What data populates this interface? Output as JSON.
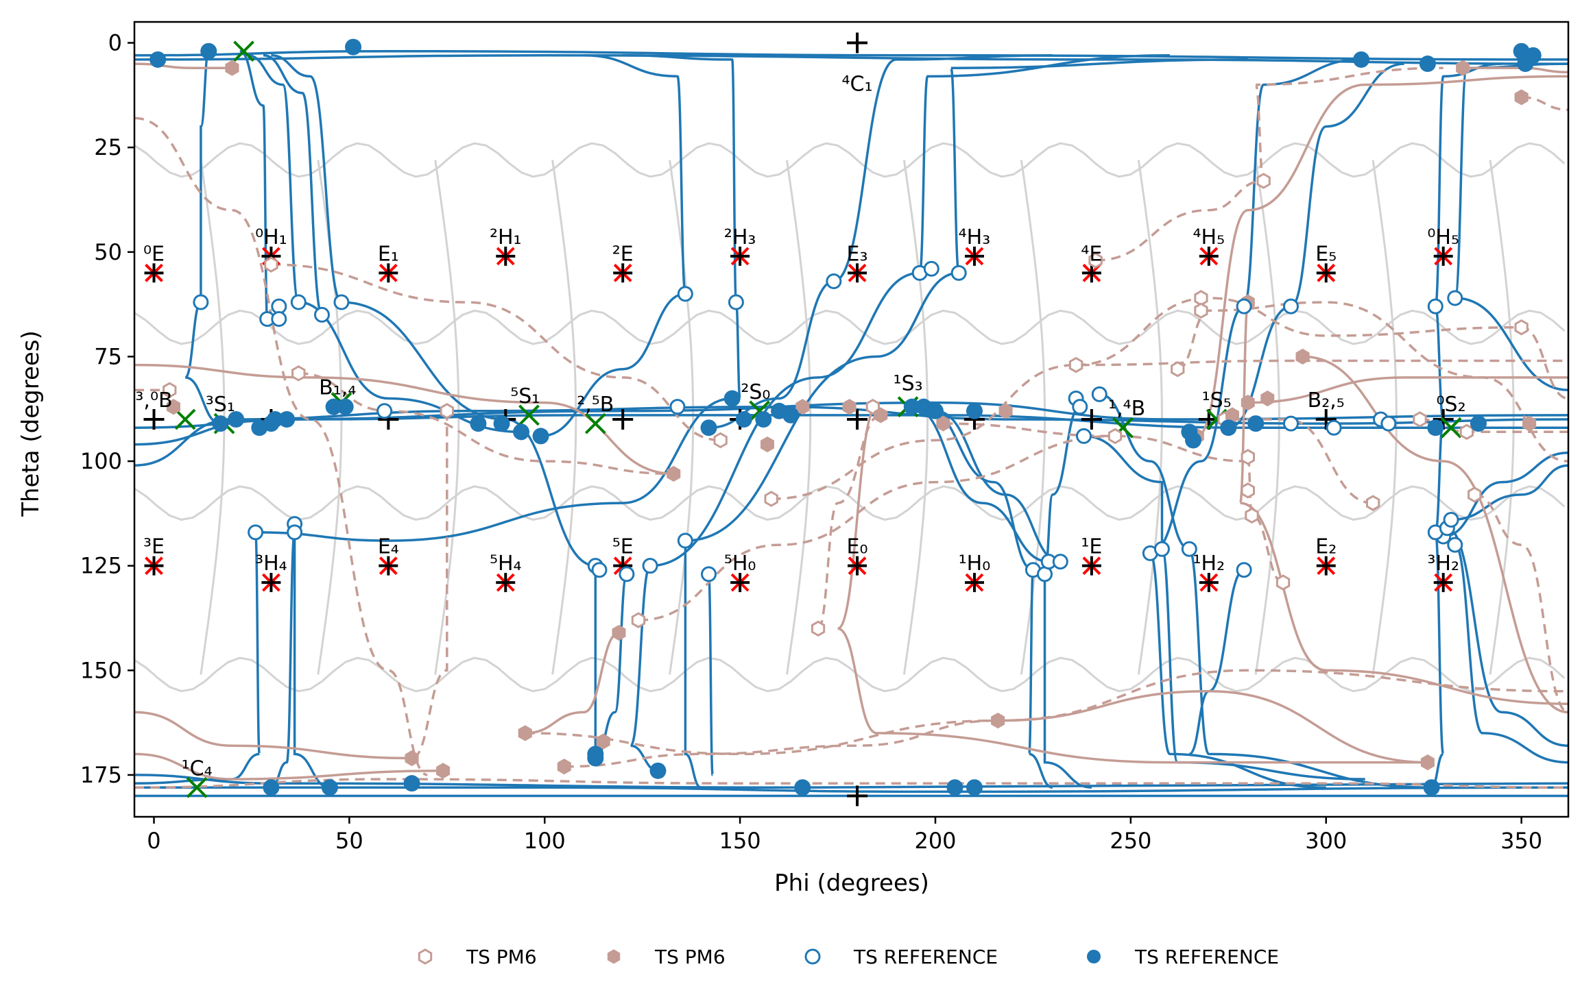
{
  "chart_data": {
    "type": "scatter",
    "xlabel": "Phi (degrees)",
    "ylabel": "Theta (degrees)",
    "xlim": [
      -5,
      362
    ],
    "ylim": [
      185,
      -5
    ],
    "y_axis_inverted": true,
    "x_ticks": [
      "0",
      "50",
      "100",
      "150",
      "200",
      "250",
      "300",
      "350"
    ],
    "y_ticks": [
      "0",
      "25",
      "50",
      "75",
      "100",
      "125",
      "150",
      "175"
    ],
    "grid": false,
    "legend_position": "bottom-center",
    "colors": {
      "pm6": "#c49c94",
      "reference": "#1f77b4",
      "background_mesh": "#d3d3d3",
      "canonical_marker": "#ff0000",
      "local_min_marker": "#008000"
    },
    "legend": [
      {
        "label": "TS PM6",
        "marker": "open-hexagon",
        "color": "#c49c94"
      },
      {
        "label": "TS PM6",
        "marker": "filled-hexagon",
        "color": "#c49c94"
      },
      {
        "label": "TS REFERENCE",
        "marker": "open-circle",
        "color": "#1f77b4"
      },
      {
        "label": "TS REFERENCE",
        "marker": "filled-circle",
        "color": "#1f77b4"
      }
    ],
    "conformations": [
      {
        "label": "⁴C₁",
        "phi": 180,
        "theta": 0,
        "pos": "below"
      },
      {
        "label": "⁰E",
        "phi": 0,
        "theta": 55
      },
      {
        "label": "⁰H₁",
        "phi": 30,
        "theta": 51
      },
      {
        "label": "E₁",
        "phi": 60,
        "theta": 55
      },
      {
        "label": "²H₁",
        "phi": 90,
        "theta": 51
      },
      {
        "label": "²E",
        "phi": 120,
        "theta": 55
      },
      {
        "label": "²H₃",
        "phi": 150,
        "theta": 51
      },
      {
        "label": "E₃",
        "phi": 180,
        "theta": 55
      },
      {
        "label": "⁴H₃",
        "phi": 210,
        "theta": 51
      },
      {
        "label": "⁴E",
        "phi": 240,
        "theta": 55
      },
      {
        "label": "⁴H₅",
        "phi": 270,
        "theta": 51
      },
      {
        "label": "E₅",
        "phi": 300,
        "theta": 55
      },
      {
        "label": "⁰H₅",
        "phi": 330,
        "theta": 51
      },
      {
        "label": "³,⁰B",
        "phi": 0,
        "theta": 90
      },
      {
        "label": "³S₁",
        "phi": 17,
        "theta": 91
      },
      {
        "label": "B₁,₄",
        "phi": 47,
        "theta": 87
      },
      {
        "label": "⁵S₁",
        "phi": 95,
        "theta": 89
      },
      {
        "label": "²,⁵B",
        "phi": 113,
        "theta": 91
      },
      {
        "label": "²S₀",
        "phi": 154,
        "theta": 88
      },
      {
        "label": "¹S₃",
        "phi": 193,
        "theta": 86
      },
      {
        "label": "¹,⁴B",
        "phi": 249,
        "theta": 92
      },
      {
        "label": "¹S₅",
        "phi": 272,
        "theta": 90
      },
      {
        "label": "B₂,₅",
        "phi": 300,
        "theta": 90
      },
      {
        "label": "⁰S₂",
        "phi": 332,
        "theta": 91
      },
      {
        "label": "³E",
        "phi": 0,
        "theta": 125
      },
      {
        "label": "³H₄",
        "phi": 30,
        "theta": 129
      },
      {
        "label": "E₄",
        "phi": 60,
        "theta": 125
      },
      {
        "label": "⁵H₄",
        "phi": 90,
        "theta": 129
      },
      {
        "label": "⁵E",
        "phi": 120,
        "theta": 125
      },
      {
        "label": "⁵H₀",
        "phi": 150,
        "theta": 129
      },
      {
        "label": "E₀",
        "phi": 180,
        "theta": 125
      },
      {
        "label": "¹H₀",
        "phi": 210,
        "theta": 129
      },
      {
        "label": "¹E",
        "phi": 240,
        "theta": 125
      },
      {
        "label": "¹H₂",
        "phi": 270,
        "theta": 129
      },
      {
        "label": "E₂",
        "phi": 300,
        "theta": 125
      },
      {
        "label": "³H₂",
        "phi": 330,
        "theta": 129
      },
      {
        "label": "¹C₄",
        "phi": 11,
        "theta": 178
      }
    ],
    "center_points": [
      {
        "phi": 180,
        "theta": 0
      },
      {
        "phi": 180,
        "theta": 180
      },
      {
        "phi": 0,
        "theta": 90
      },
      {
        "phi": 30,
        "theta": 90
      },
      {
        "phi": 60,
        "theta": 90
      },
      {
        "phi": 90,
        "theta": 90
      },
      {
        "phi": 120,
        "theta": 90
      },
      {
        "phi": 150,
        "theta": 90
      },
      {
        "phi": 180,
        "theta": 90
      },
      {
        "phi": 210,
        "theta": 90
      },
      {
        "phi": 240,
        "theta": 90
      },
      {
        "phi": 270,
        "theta": 90
      },
      {
        "phi": 300,
        "theta": 90
      },
      {
        "phi": 330,
        "theta": 90
      }
    ],
    "local_minima": [
      {
        "phi": 23,
        "theta": 2
      },
      {
        "phi": 11,
        "theta": 178
      },
      {
        "phi": 8,
        "theta": 90
      },
      {
        "phi": 18,
        "theta": 91
      },
      {
        "phi": 48,
        "theta": 86
      },
      {
        "phi": 96,
        "theta": 89
      },
      {
        "phi": 113,
        "theta": 91
      },
      {
        "phi": 155,
        "theta": 88
      },
      {
        "phi": 193,
        "theta": 87
      },
      {
        "phi": 248,
        "theta": 92
      },
      {
        "phi": 272,
        "theta": 90
      },
      {
        "phi": 332,
        "theta": 92
      }
    ],
    "series": [
      {
        "name": "TS PM6",
        "marker": "open-hexagon",
        "points": [
          {
            "phi": 30,
            "theta": 53
          },
          {
            "phi": 37,
            "theta": 79
          },
          {
            "phi": 75,
            "theta": 88
          },
          {
            "phi": 4,
            "theta": 83
          },
          {
            "phi": 145,
            "theta": 95
          },
          {
            "phi": 158,
            "theta": 109
          },
          {
            "phi": 170,
            "theta": 140
          },
          {
            "phi": 124,
            "theta": 138
          },
          {
            "phi": 236,
            "theta": 77
          },
          {
            "phi": 262,
            "theta": 78
          },
          {
            "phi": 268,
            "theta": 61
          },
          {
            "phi": 268,
            "theta": 64
          },
          {
            "phi": 284,
            "theta": 33
          },
          {
            "phi": 246,
            "theta": 94
          },
          {
            "phi": 274,
            "theta": 90
          },
          {
            "phi": 280,
            "theta": 99
          },
          {
            "phi": 281,
            "theta": 113
          },
          {
            "phi": 280,
            "theta": 107
          },
          {
            "phi": 289,
            "theta": 129
          },
          {
            "phi": 312,
            "theta": 110
          },
          {
            "phi": 338,
            "theta": 108
          },
          {
            "phi": 350,
            "theta": 68
          },
          {
            "phi": 336,
            "theta": 93
          },
          {
            "phi": 324,
            "theta": 90
          },
          {
            "phi": 241,
            "theta": 52
          },
          {
            "phi": 184,
            "theta": 87
          }
        ]
      },
      {
        "name": "TS PM6",
        "marker": "filled-hexagon",
        "points": [
          {
            "phi": 20,
            "theta": 6
          },
          {
            "phi": 350,
            "theta": 13
          },
          {
            "phi": 335,
            "theta": 6
          },
          {
            "phi": 5,
            "theta": 87
          },
          {
            "phi": 133,
            "theta": 103
          },
          {
            "phi": 157,
            "theta": 96
          },
          {
            "phi": 166,
            "theta": 87
          },
          {
            "phi": 178,
            "theta": 87
          },
          {
            "phi": 186,
            "theta": 89
          },
          {
            "phi": 202,
            "theta": 91
          },
          {
            "phi": 218,
            "theta": 88
          },
          {
            "phi": 119,
            "theta": 141
          },
          {
            "phi": 95,
            "theta": 165
          },
          {
            "phi": 66,
            "theta": 171
          },
          {
            "phi": 74,
            "theta": 174
          },
          {
            "phi": 105,
            "theta": 173
          },
          {
            "phi": 216,
            "theta": 162
          },
          {
            "phi": 280,
            "theta": 62
          },
          {
            "phi": 285,
            "theta": 85
          },
          {
            "phi": 280,
            "theta": 86
          },
          {
            "phi": 267,
            "theta": 94
          },
          {
            "phi": 276,
            "theta": 89
          },
          {
            "phi": 294,
            "theta": 75
          },
          {
            "phi": 326,
            "theta": 172
          },
          {
            "phi": 352,
            "theta": 91
          },
          {
            "phi": 115,
            "theta": 167
          }
        ]
      },
      {
        "name": "TS REFERENCE",
        "marker": "open-circle",
        "points": [
          {
            "phi": 12,
            "theta": 62
          },
          {
            "phi": 29,
            "theta": 66
          },
          {
            "phi": 32,
            "theta": 63
          },
          {
            "phi": 32,
            "theta": 66
          },
          {
            "phi": 37,
            "theta": 62
          },
          {
            "phi": 43,
            "theta": 65
          },
          {
            "phi": 48,
            "theta": 62
          },
          {
            "phi": 59,
            "theta": 88
          },
          {
            "phi": 26,
            "theta": 117
          },
          {
            "phi": 36,
            "theta": 115
          },
          {
            "phi": 36,
            "theta": 117
          },
          {
            "phi": 113,
            "theta": 125
          },
          {
            "phi": 114,
            "theta": 126
          },
          {
            "phi": 121,
            "theta": 127
          },
          {
            "phi": 127,
            "theta": 125
          },
          {
            "phi": 136,
            "theta": 60
          },
          {
            "phi": 134,
            "theta": 87
          },
          {
            "phi": 136,
            "theta": 119
          },
          {
            "phi": 142,
            "theta": 127
          },
          {
            "phi": 149,
            "theta": 62
          },
          {
            "phi": 174,
            "theta": 57
          },
          {
            "phi": 196,
            "theta": 55
          },
          {
            "phi": 199,
            "theta": 54
          },
          {
            "phi": 206,
            "theta": 55
          },
          {
            "phi": 236,
            "theta": 85
          },
          {
            "phi": 237,
            "theta": 87
          },
          {
            "phi": 238,
            "theta": 94
          },
          {
            "phi": 242,
            "theta": 84
          },
          {
            "phi": 225,
            "theta": 126
          },
          {
            "phi": 228,
            "theta": 127
          },
          {
            "phi": 229,
            "theta": 124
          },
          {
            "phi": 232,
            "theta": 124
          },
          {
            "phi": 255,
            "theta": 122
          },
          {
            "phi": 258,
            "theta": 121
          },
          {
            "phi": 265,
            "theta": 121
          },
          {
            "phi": 279,
            "theta": 63
          },
          {
            "phi": 291,
            "theta": 63
          },
          {
            "phi": 291,
            "theta": 91
          },
          {
            "phi": 302,
            "theta": 92
          },
          {
            "phi": 314,
            "theta": 90
          },
          {
            "phi": 316,
            "theta": 91
          },
          {
            "phi": 279,
            "theta": 126
          },
          {
            "phi": 328,
            "theta": 63
          },
          {
            "phi": 330,
            "theta": 118
          },
          {
            "phi": 333,
            "theta": 61
          },
          {
            "phi": 328,
            "theta": 117
          },
          {
            "phi": 331,
            "theta": 116
          },
          {
            "phi": 332,
            "theta": 114
          },
          {
            "phi": 333,
            "theta": 120
          }
        ]
      },
      {
        "name": "TS REFERENCE",
        "marker": "filled-circle",
        "points": [
          {
            "phi": 1,
            "theta": 4
          },
          {
            "phi": 14,
            "theta": 2
          },
          {
            "phi": 51,
            "theta": 1
          },
          {
            "phi": 309,
            "theta": 4
          },
          {
            "phi": 326,
            "theta": 5
          },
          {
            "phi": 350,
            "theta": 2
          },
          {
            "phi": 351,
            "theta": 5
          },
          {
            "phi": 353,
            "theta": 3
          },
          {
            "phi": 17,
            "theta": 91
          },
          {
            "phi": 21,
            "theta": 90
          },
          {
            "phi": 27,
            "theta": 92
          },
          {
            "phi": 30,
            "theta": 91
          },
          {
            "phi": 31,
            "theta": 90
          },
          {
            "phi": 34,
            "theta": 90
          },
          {
            "phi": 46,
            "theta": 87
          },
          {
            "phi": 49,
            "theta": 87
          },
          {
            "phi": 83,
            "theta": 91
          },
          {
            "phi": 89,
            "theta": 91
          },
          {
            "phi": 94,
            "theta": 93
          },
          {
            "phi": 99,
            "theta": 94
          },
          {
            "phi": 142,
            "theta": 92
          },
          {
            "phi": 148,
            "theta": 85
          },
          {
            "phi": 151,
            "theta": 90
          },
          {
            "phi": 156,
            "theta": 90
          },
          {
            "phi": 160,
            "theta": 88
          },
          {
            "phi": 163,
            "theta": 89
          },
          {
            "phi": 194,
            "theta": 87
          },
          {
            "phi": 197,
            "theta": 87
          },
          {
            "phi": 200,
            "theta": 88
          },
          {
            "phi": 210,
            "theta": 88
          },
          {
            "phi": 265,
            "theta": 93
          },
          {
            "phi": 266,
            "theta": 95
          },
          {
            "phi": 275,
            "theta": 92
          },
          {
            "phi": 282,
            "theta": 91
          },
          {
            "phi": 328,
            "theta": 92
          },
          {
            "phi": 339,
            "theta": 91
          },
          {
            "phi": 113,
            "theta": 170
          },
          {
            "phi": 113,
            "theta": 171
          },
          {
            "phi": 129,
            "theta": 174
          },
          {
            "phi": 30,
            "theta": 178
          },
          {
            "phi": 45,
            "theta": 178
          },
          {
            "phi": 66,
            "theta": 177
          },
          {
            "phi": 166,
            "theta": 178
          },
          {
            "phi": 205,
            "theta": 178
          },
          {
            "phi": 210,
            "theta": 178
          },
          {
            "phi": 327,
            "theta": 178
          }
        ]
      }
    ]
  }
}
